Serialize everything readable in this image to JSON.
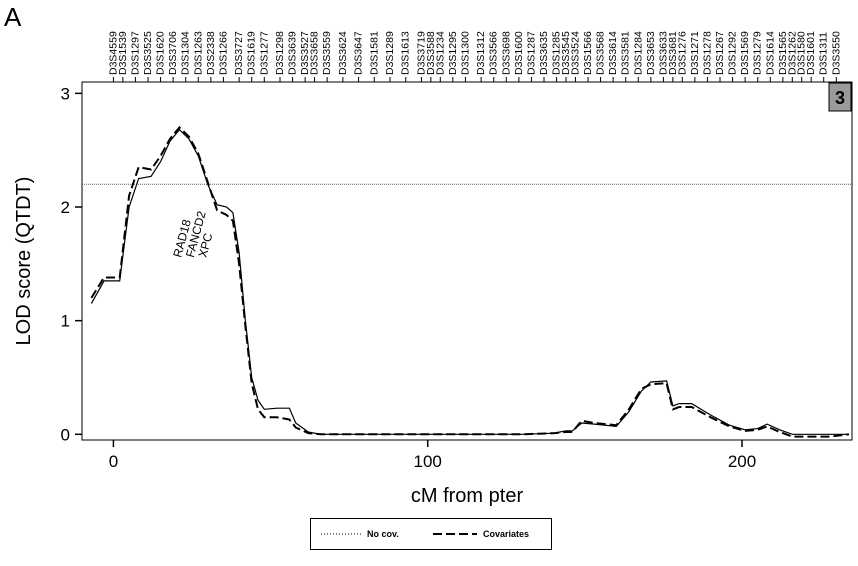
{
  "figure": {
    "panel_label": "A"
  },
  "chromosome_badge": "3",
  "chart_data": {
    "type": "line",
    "xlabel": "cM from pter",
    "ylabel": "LOD score (QTDT)",
    "xlim": [
      -10,
      235
    ],
    "ylim": [
      -0.05,
      3.1
    ],
    "x_ticks": [
      0,
      100,
      200
    ],
    "y_ticks": [
      0,
      1,
      2,
      3
    ],
    "threshold": 2.2,
    "series": [
      {
        "name": "No cov.",
        "style": "dotted",
        "color": "#000000",
        "points": [
          [
            -7,
            1.15
          ],
          [
            -3,
            1.35
          ],
          [
            2,
            1.35
          ],
          [
            5,
            2.0
          ],
          [
            8,
            2.25
          ],
          [
            12,
            2.27
          ],
          [
            15,
            2.4
          ],
          [
            18,
            2.58
          ],
          [
            21,
            2.68
          ],
          [
            24,
            2.6
          ],
          [
            27,
            2.45
          ],
          [
            30,
            2.2
          ],
          [
            33,
            2.02
          ],
          [
            36,
            2.0
          ],
          [
            38,
            1.95
          ],
          [
            40,
            1.6
          ],
          [
            42,
            1.0
          ],
          [
            44,
            0.5
          ],
          [
            46,
            0.3
          ],
          [
            48,
            0.22
          ],
          [
            52,
            0.23
          ],
          [
            56,
            0.23
          ],
          [
            58,
            0.1
          ],
          [
            62,
            0.02
          ],
          [
            66,
            0.0
          ],
          [
            100,
            0.0
          ],
          [
            130,
            0.0
          ],
          [
            140,
            0.01
          ],
          [
            144,
            0.03
          ],
          [
            146,
            0.03
          ],
          [
            149,
            0.1
          ],
          [
            153,
            0.09
          ],
          [
            160,
            0.07
          ],
          [
            164,
            0.2
          ],
          [
            168,
            0.38
          ],
          [
            171,
            0.46
          ],
          [
            176,
            0.47
          ],
          [
            178,
            0.25
          ],
          [
            180,
            0.27
          ],
          [
            184,
            0.27
          ],
          [
            190,
            0.17
          ],
          [
            196,
            0.08
          ],
          [
            201,
            0.04
          ],
          [
            205,
            0.05
          ],
          [
            208,
            0.09
          ],
          [
            212,
            0.04
          ],
          [
            216,
            0.0
          ],
          [
            234,
            0.0
          ]
        ]
      },
      {
        "name": "Covariates",
        "style": "dashed",
        "color": "#000000",
        "points": [
          [
            -7,
            1.2
          ],
          [
            -3,
            1.38
          ],
          [
            2,
            1.38
          ],
          [
            5,
            2.1
          ],
          [
            8,
            2.35
          ],
          [
            12,
            2.33
          ],
          [
            15,
            2.45
          ],
          [
            18,
            2.6
          ],
          [
            21,
            2.7
          ],
          [
            24,
            2.62
          ],
          [
            27,
            2.47
          ],
          [
            30,
            2.22
          ],
          [
            33,
            1.97
          ],
          [
            36,
            1.93
          ],
          [
            38,
            1.88
          ],
          [
            40,
            1.5
          ],
          [
            42,
            0.95
          ],
          [
            44,
            0.45
          ],
          [
            46,
            0.22
          ],
          [
            48,
            0.15
          ],
          [
            52,
            0.15
          ],
          [
            56,
            0.13
          ],
          [
            58,
            0.06
          ],
          [
            62,
            0.01
          ],
          [
            66,
            0.0
          ],
          [
            100,
            0.0
          ],
          [
            130,
            0.0
          ],
          [
            140,
            0.01
          ],
          [
            144,
            0.02
          ],
          [
            146,
            0.02
          ],
          [
            149,
            0.12
          ],
          [
            153,
            0.1
          ],
          [
            160,
            0.08
          ],
          [
            164,
            0.22
          ],
          [
            168,
            0.4
          ],
          [
            171,
            0.44
          ],
          [
            176,
            0.45
          ],
          [
            178,
            0.22
          ],
          [
            180,
            0.24
          ],
          [
            184,
            0.24
          ],
          [
            190,
            0.15
          ],
          [
            196,
            0.07
          ],
          [
            201,
            0.03
          ],
          [
            205,
            0.04
          ],
          [
            208,
            0.07
          ],
          [
            212,
            0.02
          ],
          [
            216,
            -0.02
          ],
          [
            228,
            -0.02
          ],
          [
            234,
            0.0
          ]
        ]
      }
    ],
    "gene_annotations": [
      {
        "label": "RAD18",
        "x": 21.5,
        "y": 1.55
      },
      {
        "label": "FANCD2",
        "x": 25.5,
        "y": 1.55
      },
      {
        "label": "XPC",
        "x": 29.5,
        "y": 1.55
      }
    ],
    "markers": [
      {
        "name": "D3S4559",
        "x": 0
      },
      {
        "name": "D3S1539",
        "x": 3
      },
      {
        "name": "D3S1297",
        "x": 7
      },
      {
        "name": "D3S3525",
        "x": 11
      },
      {
        "name": "D3S1620",
        "x": 15
      },
      {
        "name": "D3S3706",
        "x": 19
      },
      {
        "name": "D3S1304",
        "x": 23
      },
      {
        "name": "D3S1263",
        "x": 27
      },
      {
        "name": "D3S2338",
        "x": 31
      },
      {
        "name": "D3S1266",
        "x": 35
      },
      {
        "name": "D3S3727",
        "x": 40
      },
      {
        "name": "D3S1619",
        "x": 44
      },
      {
        "name": "D3S1277",
        "x": 48
      },
      {
        "name": "D3S1298",
        "x": 53
      },
      {
        "name": "D3S3639",
        "x": 57
      },
      {
        "name": "D3S3527",
        "x": 61
      },
      {
        "name": "D3S3658",
        "x": 64
      },
      {
        "name": "D3S3559",
        "x": 68
      },
      {
        "name": "D3S3624",
        "x": 73
      },
      {
        "name": "D3S3647",
        "x": 78
      },
      {
        "name": "D3S1581",
        "x": 83
      },
      {
        "name": "D3S1289",
        "x": 88
      },
      {
        "name": "D3S1613",
        "x": 93
      },
      {
        "name": "D3S3719",
        "x": 98
      },
      {
        "name": "D3S3588",
        "x": 101
      },
      {
        "name": "D3S1234",
        "x": 104
      },
      {
        "name": "D3S1295",
        "x": 108
      },
      {
        "name": "D3S1300",
        "x": 112
      },
      {
        "name": "D3S1312",
        "x": 117
      },
      {
        "name": "D3S3566",
        "x": 121
      },
      {
        "name": "D3S3698",
        "x": 125
      },
      {
        "name": "D3S1600",
        "x": 129
      },
      {
        "name": "D3S1287",
        "x": 133
      },
      {
        "name": "D3S3635",
        "x": 137
      },
      {
        "name": "D3S1285",
        "x": 141
      },
      {
        "name": "D3S3545",
        "x": 144
      },
      {
        "name": "D3S3524",
        "x": 147
      },
      {
        "name": "D3S1566",
        "x": 151
      },
      {
        "name": "D3S3568",
        "x": 155
      },
      {
        "name": "D3S3614",
        "x": 159
      },
      {
        "name": "D3S3581",
        "x": 163
      },
      {
        "name": "D3S1284",
        "x": 167
      },
      {
        "name": "D3S3653",
        "x": 171
      },
      {
        "name": "D3S3633",
        "x": 175
      },
      {
        "name": "D3S3681",
        "x": 178
      },
      {
        "name": "D3S1276",
        "x": 181
      },
      {
        "name": "D3S1271",
        "x": 185
      },
      {
        "name": "D3S1278",
        "x": 189
      },
      {
        "name": "D3S1267",
        "x": 193
      },
      {
        "name": "D3S1292",
        "x": 197
      },
      {
        "name": "D3S1569",
        "x": 201
      },
      {
        "name": "D3S1279",
        "x": 205
      },
      {
        "name": "D3S1614",
        "x": 209
      },
      {
        "name": "D3S1565",
        "x": 213
      },
      {
        "name": "D3S1262",
        "x": 216
      },
      {
        "name": "D3S1580",
        "x": 219
      },
      {
        "name": "D3S1601",
        "x": 222
      },
      {
        "name": "D3S1311",
        "x": 226
      },
      {
        "name": "D3S3550",
        "x": 230
      }
    ]
  }
}
